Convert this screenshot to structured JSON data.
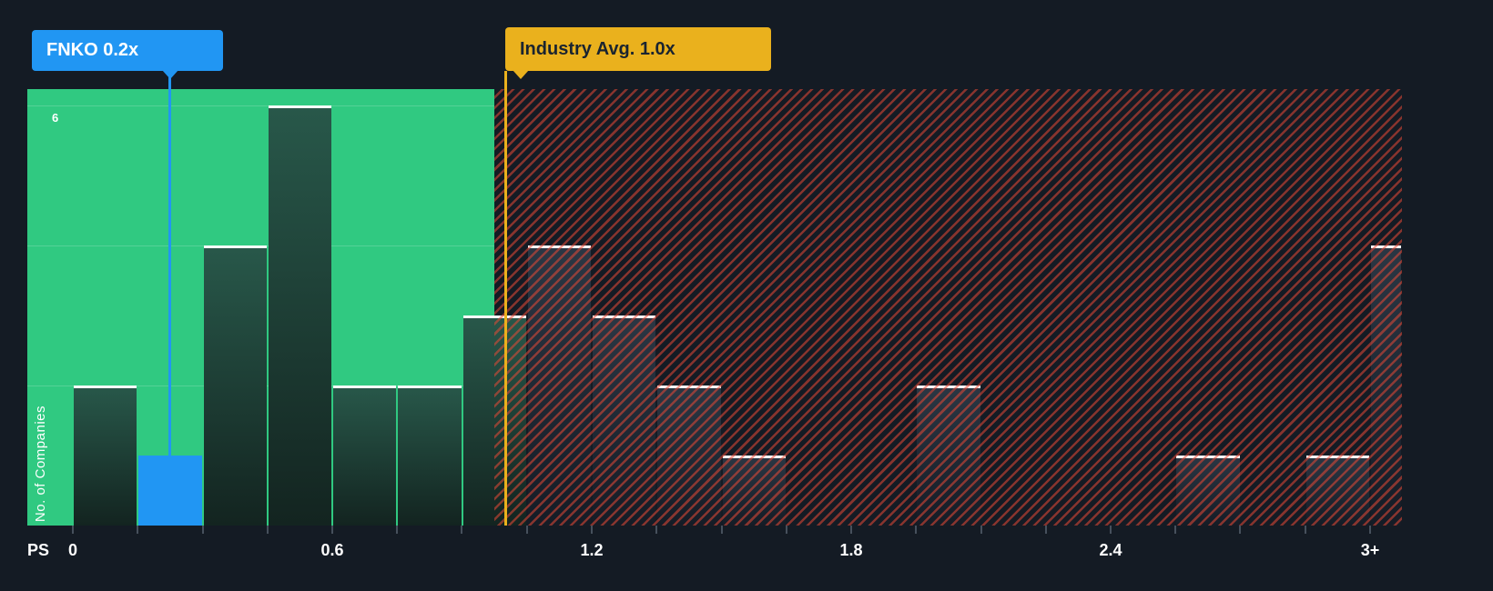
{
  "colors": {
    "background": "#141b24",
    "region_green": "#30c981",
    "hatch_red": "#e64936",
    "fnko_blue": "#2196f3",
    "industry_gold": "#eab11d",
    "industry_text": "#1a2430",
    "bar_cap": "#ffffff",
    "axis_text": "#ffffff",
    "bar_green_top": "#28584a",
    "bar_green_bottom": "#132420",
    "bar_navy_top": "#2b3744",
    "bar_navy_bottom": "#151c26"
  },
  "chart_data": {
    "type": "bar",
    "xlabel": "PS",
    "ylabel": "No. of Companies",
    "y_tick_label": "6",
    "ylim": [
      0,
      6.2
    ],
    "xlim": [
      0,
      3.07
    ],
    "bin_width": 0.15,
    "grid_values": [
      2,
      4,
      6
    ],
    "x_ticks": [
      {
        "value": 0.0,
        "label": "0"
      },
      {
        "value": 0.6,
        "label": "0.6"
      },
      {
        "value": 1.2,
        "label": "1.2"
      },
      {
        "value": 1.8,
        "label": "1.8"
      },
      {
        "value": 2.4,
        "label": "2.4"
      },
      {
        "value": 3.0,
        "label": "3+"
      }
    ],
    "bins": [
      {
        "from": 0.0,
        "count": 2
      },
      {
        "from": 0.15,
        "count": 1,
        "highlight": "FNKO"
      },
      {
        "from": 0.3,
        "count": 4
      },
      {
        "from": 0.45,
        "count": 6
      },
      {
        "from": 0.6,
        "count": 2
      },
      {
        "from": 0.75,
        "count": 2
      },
      {
        "from": 0.9,
        "count": 3
      },
      {
        "from": 1.05,
        "count": 4
      },
      {
        "from": 1.2,
        "count": 3
      },
      {
        "from": 1.35,
        "count": 2
      },
      {
        "from": 1.5,
        "count": 1
      },
      {
        "from": 1.65,
        "count": 0
      },
      {
        "from": 1.8,
        "count": 0
      },
      {
        "from": 1.95,
        "count": 2
      },
      {
        "from": 2.1,
        "count": 0
      },
      {
        "from": 2.25,
        "count": 0
      },
      {
        "from": 2.4,
        "count": 0
      },
      {
        "from": 2.55,
        "count": 1
      },
      {
        "from": 2.7,
        "count": 0
      },
      {
        "from": 2.85,
        "count": 1
      },
      {
        "from": 3.0,
        "count": 4
      }
    ],
    "markers": [
      {
        "id": "fnko",
        "label": "FNKO 0.2x",
        "value": 0.2,
        "line_x": 0.225
      },
      {
        "id": "industry",
        "label": "Industry Avg. 1.0x",
        "value": 1.0,
        "line_x": 1.0
      }
    ],
    "regions": [
      {
        "style": "solid",
        "from": 0,
        "to": 0.975
      },
      {
        "style": "hatched",
        "from": 0.975,
        "to": 3.07
      }
    ]
  }
}
